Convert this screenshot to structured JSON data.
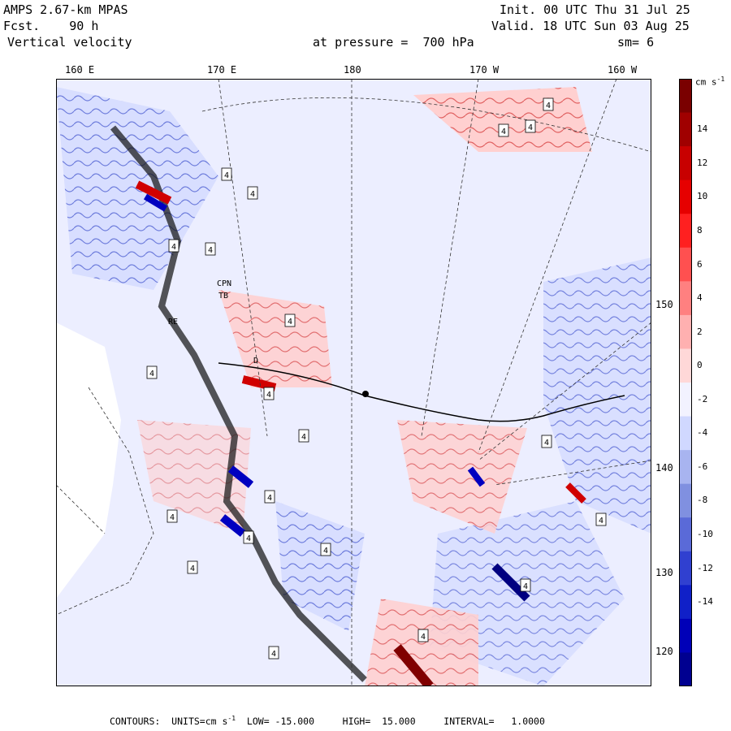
{
  "header": {
    "model": "AMPS 2.67-km MPAS",
    "fcst": "Fcst.    90 h",
    "field": "Vertical velocity",
    "init": "Init. 00 UTC Thu 31 Jul 25",
    "valid": "Valid. 18 UTC Sun 03 Aug 25",
    "pressure": "at pressure =  700 hPa",
    "smooth": "sm= 6"
  },
  "longitude_labels": [
    "160 E",
    "170 E",
    "180",
    "170 W",
    "160 W"
  ],
  "latitude_labels": [
    "150 W",
    "140 W",
    "130 W",
    "120 W"
  ],
  "place_labels": [
    "CPN",
    "TB",
    "RE",
    "D"
  ],
  "contour_marker": "4",
  "colorbar": {
    "unit": "cm s",
    "unit_exp": "-1",
    "labels": [
      "14",
      "12",
      "10",
      "8",
      "6",
      "4",
      "2",
      "0",
      "-2",
      "-4",
      "-6",
      "-8",
      "-10",
      "-12",
      "-14"
    ],
    "colors": [
      "#7a0000",
      "#a00000",
      "#c80000",
      "#e60000",
      "#ff2020",
      "#ff5050",
      "#ff8080",
      "#ffb0b0",
      "#ffd8d8",
      "#f2f2ff",
      "#d0d8ff",
      "#a8b4f0",
      "#8090e0",
      "#5a6ad8",
      "#3040d0",
      "#1020c8",
      "#0000b8",
      "#000090"
    ]
  },
  "footer": {
    "contours": "CONTOURS:",
    "units_label": "UNITS=cm s",
    "units_exp": "-1",
    "low": "LOW= -15.000",
    "high": "HIGH=  15.000",
    "interval": "INTERVAL=   1.0000"
  }
}
